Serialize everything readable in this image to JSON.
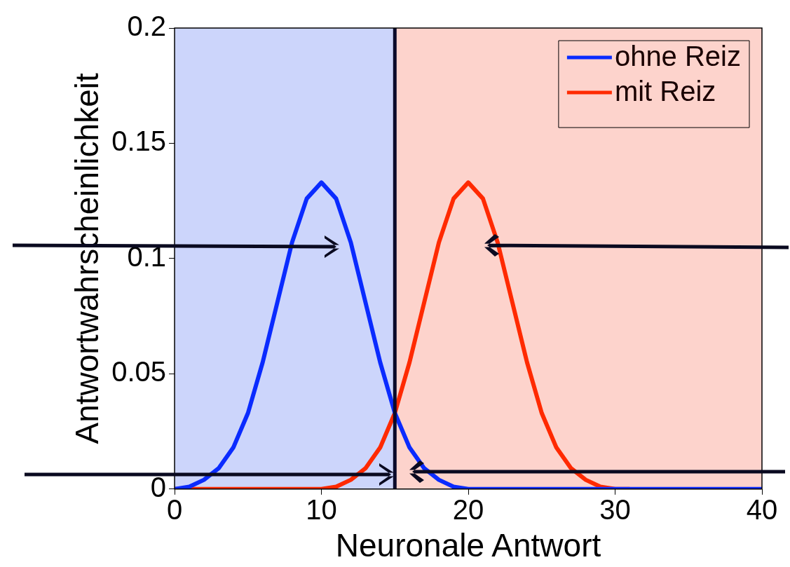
{
  "chart_data": {
    "type": "line",
    "xlabel": "Neuronale Antwort",
    "ylabel": "Antwortwahrscheinlichkeit",
    "x": [
      0,
      1,
      2,
      3,
      4,
      5,
      6,
      7,
      8,
      9,
      10,
      11,
      12,
      13,
      14,
      15,
      16,
      17,
      18,
      19,
      20,
      21,
      22,
      23,
      24,
      25,
      26,
      27,
      28,
      29,
      30,
      31,
      32,
      33,
      34,
      35,
      36,
      37,
      38,
      39,
      40
    ],
    "series": [
      {
        "name": "ohne Reiz",
        "color": "#0a2bff",
        "values": [
          0,
          0.001,
          0.004,
          0.009,
          0.018,
          0.033,
          0.055,
          0.081,
          0.107,
          0.126,
          0.133,
          0.126,
          0.107,
          0.081,
          0.055,
          0.033,
          0.018,
          0.009,
          0.004,
          0.001,
          0,
          0,
          0,
          0,
          0,
          0,
          0,
          0,
          0,
          0,
          0,
          0,
          0,
          0,
          0,
          0,
          0,
          0,
          0,
          0,
          0
        ]
      },
      {
        "name": "mit Reiz",
        "color": "#ff2a00",
        "values": [
          0,
          0,
          0,
          0,
          0,
          0,
          0,
          0,
          0,
          0,
          0,
          0.001,
          0.004,
          0.009,
          0.018,
          0.033,
          0.055,
          0.081,
          0.107,
          0.126,
          0.133,
          0.126,
          0.107,
          0.081,
          0.055,
          0.033,
          0.018,
          0.009,
          0.004,
          0.001,
          0,
          0,
          null,
          null,
          null,
          null,
          null,
          null,
          null,
          null,
          null
        ]
      }
    ],
    "xlim": [
      0,
      40
    ],
    "xticks": [
      0,
      10,
      20,
      30,
      40
    ],
    "ylim": [
      0,
      0.2
    ],
    "yticks": [
      0,
      0.05,
      0.1,
      0.15,
      0.2
    ],
    "bands": [
      {
        "axis": "x",
        "from": 0,
        "to": 15,
        "color": "#ccd5fb"
      },
      {
        "axis": "x",
        "from": 15,
        "to": 40,
        "color": "#fdd3cc"
      }
    ],
    "ref_lines": [
      {
        "axis": "x",
        "value": 15,
        "color": "#0a0a2a"
      }
    ],
    "legend": "top right",
    "grid": false,
    "marker": "none",
    "line_style": "solid"
  }
}
